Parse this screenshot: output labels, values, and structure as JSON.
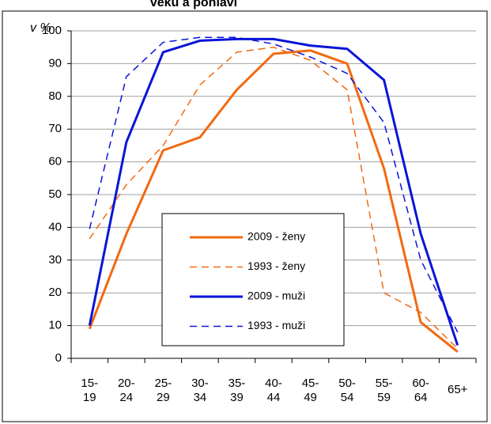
{
  "chart_data": {
    "type": "line",
    "title": "věku a pohlaví",
    "y_label": "v %",
    "categories": [
      "15-19",
      "20-24",
      "25-29",
      "30-34",
      "35-39",
      "40-44",
      "45-49",
      "50-54",
      "55-59",
      "60-64",
      "65+"
    ],
    "series": [
      {
        "name": "2009 - ženy",
        "color": "#f26a10",
        "dashed": false,
        "values": [
          9,
          38,
          63.5,
          67.5,
          82,
          93,
          94,
          90,
          58,
          11,
          2
        ]
      },
      {
        "name": "1993 - ženy",
        "color": "#f26a10",
        "dashed": true,
        "values": [
          36.5,
          53,
          65,
          83.5,
          93.5,
          95,
          91,
          82,
          20,
          14,
          3
        ]
      },
      {
        "name": "2009 - muži",
        "color": "#0a14d8",
        "dashed": false,
        "values": [
          10,
          66,
          93.5,
          97,
          97.5,
          97.5,
          95.5,
          94.5,
          85,
          38,
          4
        ]
      },
      {
        "name": "1993 - muži",
        "color": "#0a14d8",
        "dashed": true,
        "values": [
          39.5,
          86,
          96.5,
          98,
          98,
          96,
          92,
          87,
          72,
          30,
          8
        ]
      }
    ],
    "ylim": [
      0,
      100
    ],
    "yticks": [
      0,
      10,
      20,
      30,
      40,
      50,
      60,
      70,
      80,
      90,
      100
    ],
    "grid": true
  }
}
